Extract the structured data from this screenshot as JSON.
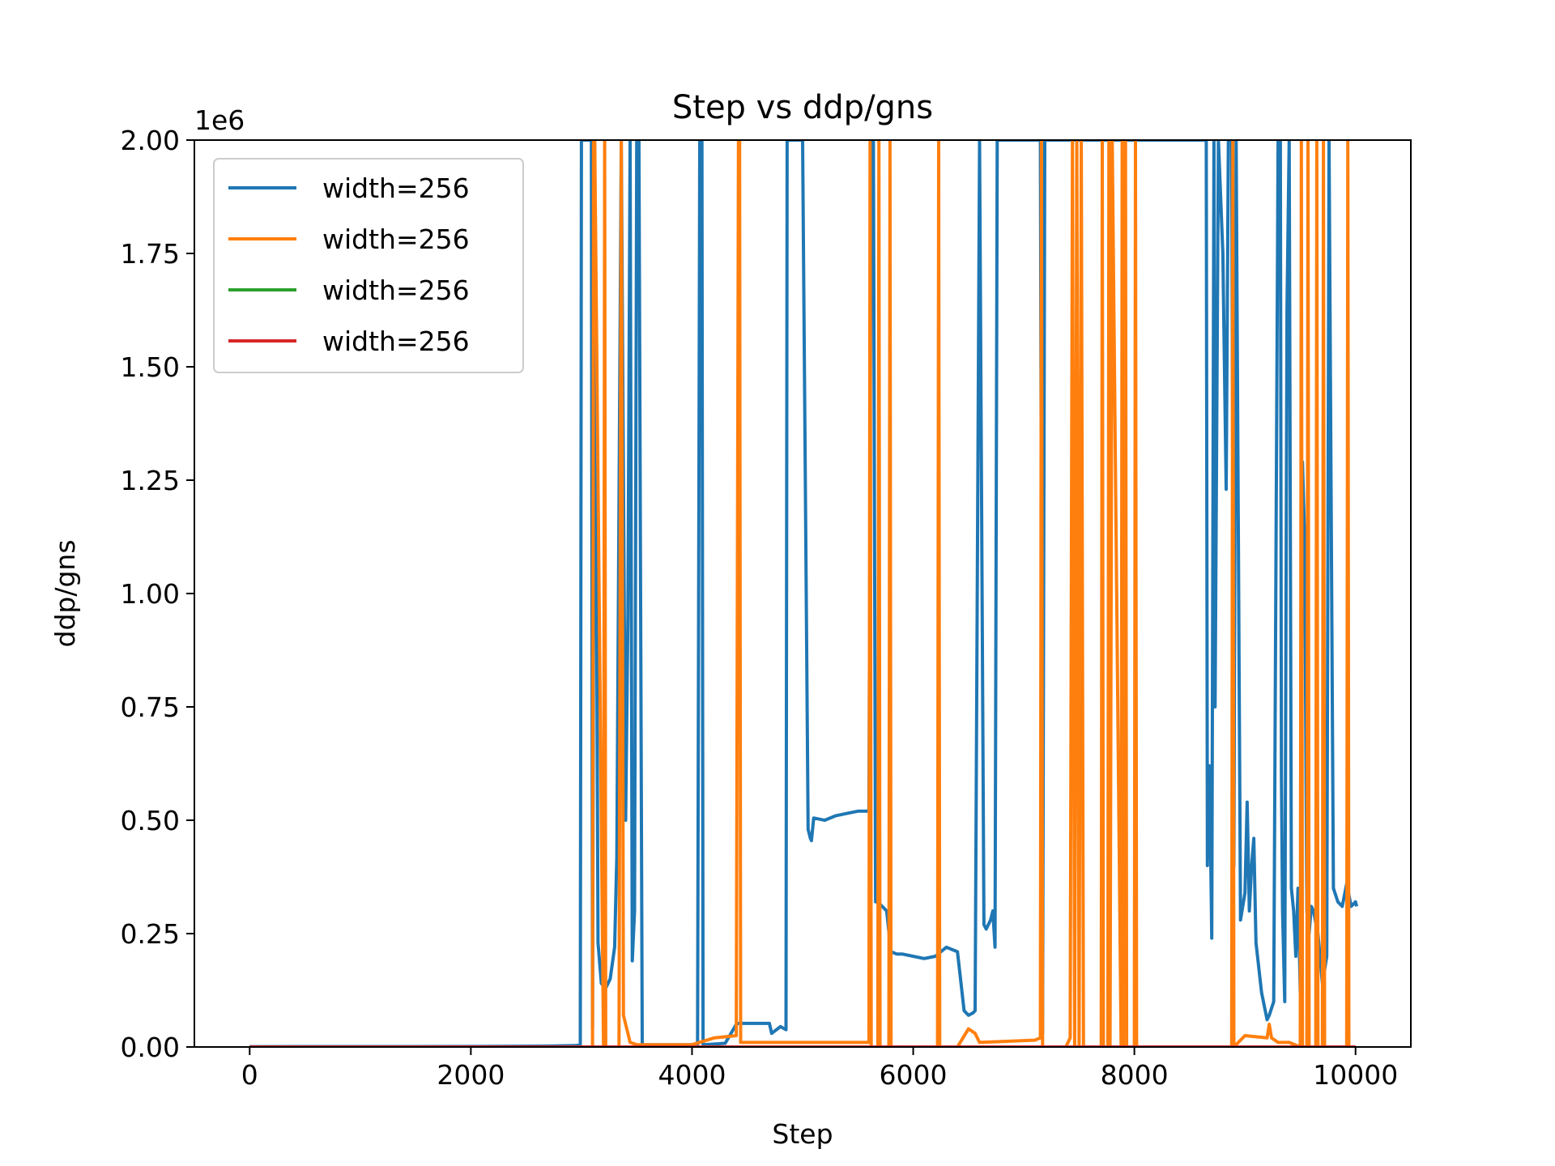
{
  "chart_data": {
    "type": "line",
    "title": "Step vs ddp/gns",
    "xlabel": "Step",
    "ylabel": "ddp/gns",
    "y_multiplier_label": "1e6",
    "xlim": [
      -500,
      10500
    ],
    "ylim": [
      0,
      2000000
    ],
    "xticks": [
      0,
      2000,
      4000,
      6000,
      8000,
      10000
    ],
    "xtick_labels": [
      "0",
      "2000",
      "4000",
      "6000",
      "8000",
      "10000"
    ],
    "yticks": [
      0,
      250000,
      500000,
      750000,
      1000000,
      1250000,
      1500000,
      1750000,
      2000000
    ],
    "ytick_labels": [
      "0.00",
      "0.25",
      "0.50",
      "0.75",
      "1.00",
      "1.25",
      "1.50",
      "1.75",
      "2.00"
    ],
    "grid": false,
    "legend_position": "top-left",
    "series": [
      {
        "name": "width=256",
        "color": "#1f77b4",
        "x": [
          0,
          2000,
          2700,
          2950,
          2990,
          3000,
          3010,
          3060,
          3090,
          3100,
          3120,
          3150,
          3180,
          3220,
          3260,
          3300,
          3320,
          3360,
          3400,
          3420,
          3440,
          3460,
          3480,
          3500,
          3520,
          3550,
          4050,
          4070,
          4090,
          4100,
          4300,
          4400,
          4420,
          4700,
          4720,
          4800,
          4850,
          4860,
          4870,
          5000,
          5050,
          5070,
          5080,
          5100,
          5200,
          5300,
          5400,
          5500,
          5600,
          5620,
          5640,
          5660,
          5680,
          5700,
          5760,
          5800,
          5850,
          5900,
          6000,
          6100,
          6200,
          6300,
          6400,
          6460,
          6500,
          6540,
          6560,
          6600,
          6640,
          6660,
          6700,
          6720,
          6740,
          6760,
          7150,
          7170,
          7190,
          8650,
          8660,
          8670,
          8680,
          8700,
          8720,
          8730,
          8760,
          8800,
          8830,
          8850,
          8880,
          8900,
          8920,
          8960,
          9000,
          9020,
          9040,
          9060,
          9080,
          9100,
          9150,
          9200,
          9220,
          9260,
          9300,
          9320,
          9330,
          9340,
          9360,
          9380,
          9400,
          9420,
          9440,
          9460,
          9480,
          9500,
          9520,
          9540,
          9560,
          9580,
          9600,
          9620,
          9660,
          9700,
          9720,
          9740,
          9760,
          9800,
          9840,
          9880,
          9920,
          9960,
          10000,
          10010
        ],
        "y": [
          800,
          1000,
          2000,
          3000,
          5000,
          2000000,
          2000000,
          2000000,
          2000000,
          40000,
          2000000,
          230000,
          140000,
          130000,
          150000,
          220000,
          420000,
          2000000,
          500000,
          950000,
          2000000,
          190000,
          300000,
          2000000,
          2000000,
          5000,
          5000,
          2000000,
          2000000,
          5000,
          8000,
          50000,
          52000,
          52000,
          30000,
          45000,
          38000,
          2000000,
          2000000,
          2000000,
          480000,
          460000,
          455000,
          505000,
          500000,
          510000,
          515000,
          520000,
          520000,
          2000000,
          2000000,
          320000,
          320000,
          315000,
          300000,
          210000,
          205000,
          205000,
          200000,
          195000,
          200000,
          220000,
          210000,
          80000,
          70000,
          75000,
          80000,
          2000000,
          270000,
          260000,
          280000,
          300000,
          220000,
          2000000,
          2000000,
          30000,
          2000000,
          2000000,
          400000,
          600000,
          620000,
          240000,
          2000000,
          750000,
          2000000,
          1750000,
          1230000,
          2000000,
          2000000,
          400000,
          2000000,
          280000,
          340000,
          540000,
          300000,
          400000,
          460000,
          230000,
          120000,
          60000,
          70000,
          100000,
          2000000,
          2000000,
          600000,
          300000,
          100000,
          1630000,
          2000000,
          350000,
          300000,
          200000,
          350000,
          120000,
          1290000,
          1120000,
          300000,
          250000,
          310000,
          300000,
          250000,
          140000,
          170000,
          200000,
          2000000,
          350000,
          320000,
          310000,
          360000,
          310000,
          320000,
          310000
        ],
        "y_note": "values at the 2.00e6 ceiling are clipped at the top of the plot area"
      },
      {
        "name": "width=256",
        "color": "#ff7f0e",
        "x": [
          0,
          2000,
          3000,
          3100,
          3110,
          3120,
          3200,
          3210,
          3220,
          3340,
          3360,
          3380,
          3400,
          3420,
          3440,
          3500,
          4000,
          4200,
          4400,
          4420,
          4430,
          4440,
          4500,
          5600,
          5610,
          5620,
          5680,
          5690,
          5700,
          5780,
          5790,
          5800,
          6220,
          6230,
          6240,
          6400,
          6450,
          6500,
          6560,
          6600,
          7100,
          7150,
          7160,
          7170,
          7380,
          7400,
          7420,
          7440,
          7460,
          7480,
          7500,
          7520,
          7540,
          7600,
          7700,
          7710,
          7720,
          7760,
          7770,
          7780,
          7800,
          7880,
          7890,
          7900,
          7920,
          7930,
          8000,
          8010,
          8020,
          8880,
          8890,
          8900,
          9000,
          9200,
          9220,
          9240,
          9300,
          9400,
          9500,
          9510,
          9520,
          9560,
          9570,
          9580,
          9640,
          9650,
          9660,
          9700,
          9710,
          9720,
          9920,
          9930,
          9940,
          10000
        ],
        "y": [
          0,
          0,
          0,
          0,
          2000000,
          2000000,
          0,
          2000000,
          0,
          0,
          2000000,
          70000,
          50000,
          30000,
          10000,
          5000,
          5000,
          20000,
          25000,
          2000000,
          2000000,
          10000,
          10000,
          10000,
          2000000,
          0,
          0,
          2000000,
          0,
          0,
          2000000,
          0,
          0,
          2000000,
          0,
          0,
          20000,
          40000,
          30000,
          10000,
          15000,
          20000,
          2000000,
          0,
          0,
          10000,
          20000,
          2000000,
          0,
          2000000,
          0,
          2000000,
          0,
          0,
          0,
          2000000,
          0,
          0,
          2000000,
          0,
          2000000,
          0,
          2000000,
          0,
          2000000,
          0,
          0,
          2000000,
          0,
          0,
          2000000,
          0,
          25000,
          20000,
          50000,
          20000,
          10000,
          10000,
          0,
          2000000,
          0,
          0,
          2000000,
          0,
          0,
          2000000,
          0,
          0,
          2000000,
          0,
          0,
          2000000,
          0,
          0
        ]
      },
      {
        "name": "width=256",
        "color": "#2ca02c",
        "x": [
          0,
          10000
        ],
        "y": [
          0,
          0
        ]
      },
      {
        "name": "width=256",
        "color": "#d62728",
        "x": [
          0,
          10000
        ],
        "y": [
          0,
          0
        ]
      }
    ]
  }
}
